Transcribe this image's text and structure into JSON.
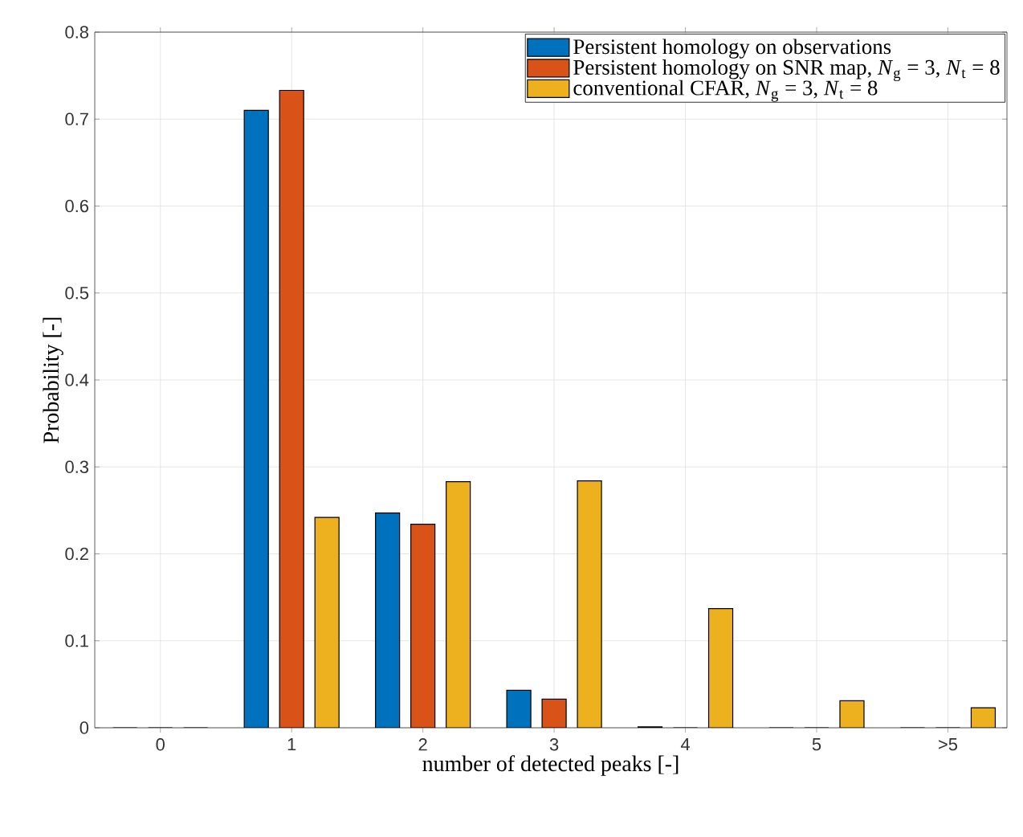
{
  "chart_data": {
    "type": "bar",
    "xlabel": "number of detected peaks [-]",
    "ylabel": "Probability [-]",
    "categories": [
      "0",
      "1",
      "2",
      "3",
      "4",
      "5",
      ">5"
    ],
    "series": [
      {
        "name": "Persistent homology on observations",
        "color": "#0072bd",
        "values": [
          0,
          0.71,
          0.247,
          0.043,
          0.001,
          0,
          0
        ]
      },
      {
        "name": "Persistent homology on SNR map, *N*$_{g}$ = 3, *N*$_{t}$ = 8",
        "color": "#d95319",
        "values": [
          0,
          0.733,
          0.234,
          0.033,
          0,
          0,
          0
        ]
      },
      {
        "name": "conventional CFAR, *N*$_{g}$ = 3, *N*$_{t}$ = 8",
        "color": "#edb120",
        "values": [
          0,
          0.242,
          0.283,
          0.284,
          0.137,
          0.031,
          0.023
        ]
      }
    ],
    "ylim": [
      0,
      0.8
    ],
    "yticks": [
      0,
      0.1,
      0.2,
      0.3,
      0.4,
      0.5,
      0.6,
      0.7,
      0.8
    ],
    "grid": true,
    "legend": "top right"
  }
}
